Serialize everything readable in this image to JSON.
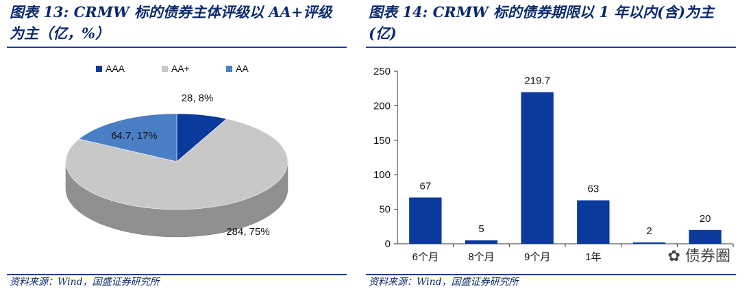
{
  "left": {
    "title": "图表 13: CRMW 标的债券主体评级以 AA+评级为主（亿，%）",
    "source": "资料来源：Wind，国盛证券研究所"
  },
  "right": {
    "title": "图表 14: CRMW 标的债券期限以 1 年以内(含)为主(亿)",
    "source": "资料来源：Wind，国盛证券研究所"
  },
  "watermark": "债券圈",
  "chart_data": [
    {
      "type": "pie",
      "categories": [
        "AAA",
        "AA+",
        "AA"
      ],
      "values": [
        28,
        284,
        64.7
      ],
      "percents": [
        8,
        75,
        17
      ],
      "data_labels": [
        "28, 8%",
        "284, 75%",
        "64.7, 17%"
      ],
      "legend": [
        "AAA",
        "AA+",
        "AA"
      ],
      "legend_position": "top",
      "colors": [
        "#0a3a9c",
        "#c8c8c8",
        "#4a7fc6"
      ]
    },
    {
      "type": "bar",
      "categories": [
        "6个月",
        "8个月",
        "9个月",
        "1年",
        "",
        ""
      ],
      "values": [
        67,
        5,
        219.7,
        63,
        2,
        20
      ],
      "data_labels": [
        "67",
        "5",
        "219.7",
        "63",
        "2",
        "20"
      ],
      "yticks": [
        "0",
        "50",
        "100",
        "150",
        "200",
        "250"
      ],
      "ylim": [
        0,
        250
      ],
      "grid": false,
      "color": "#0a3a9c"
    }
  ]
}
